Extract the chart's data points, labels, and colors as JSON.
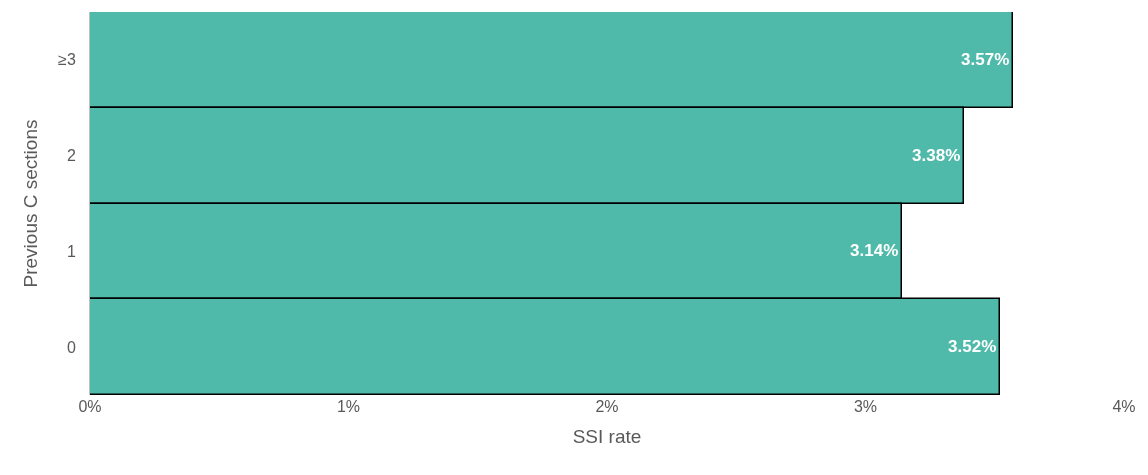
{
  "chart_data": {
    "type": "bar",
    "orientation": "horizontal",
    "xlabel": "SSI rate",
    "ylabel": "Previous C sections",
    "categories": [
      "≥3",
      "2",
      "1",
      "0"
    ],
    "values": [
      3.57,
      3.38,
      3.14,
      3.52
    ],
    "value_labels": [
      "3.57%",
      "3.38%",
      "3.14%",
      "3.52%"
    ],
    "color": "#4fb9aa",
    "xlim": [
      0,
      4
    ],
    "xticks": [
      {
        "value": 0,
        "label": "0%"
      },
      {
        "value": 1,
        "label": "1%"
      },
      {
        "value": 2,
        "label": "2%"
      },
      {
        "value": 3,
        "label": "3%"
      },
      {
        "value": 4,
        "label": "4%"
      }
    ]
  }
}
